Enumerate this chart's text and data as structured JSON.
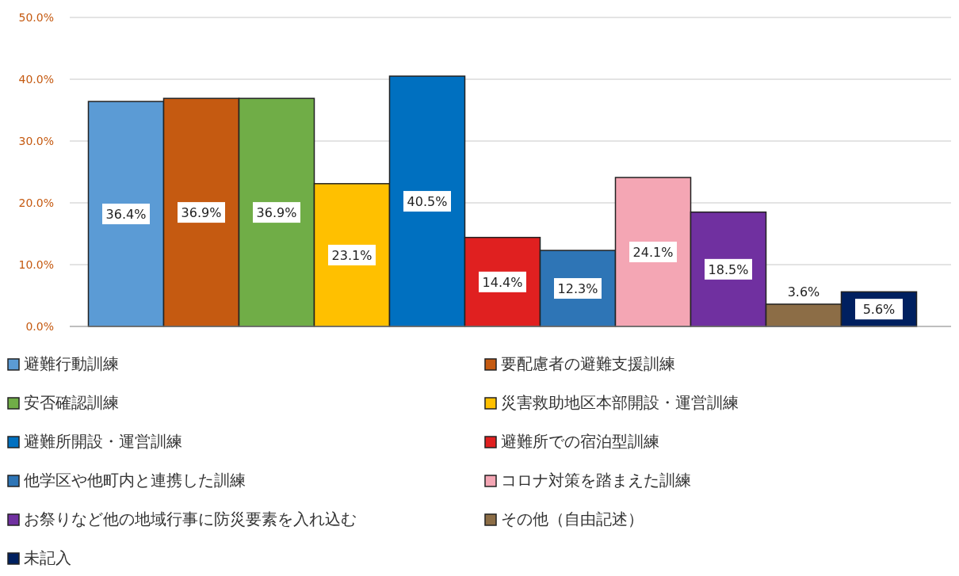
{
  "chart_data": {
    "type": "bar",
    "categories": [
      null
    ],
    "ylim": [
      0,
      50
    ],
    "yticks": [
      {
        "value": 0,
        "label": "0.0%"
      },
      {
        "value": 10,
        "label": "10.0%"
      },
      {
        "value": 20,
        "label": "20.0%"
      },
      {
        "value": 30,
        "label": "30.0%"
      },
      {
        "value": 40,
        "label": "40.0%"
      },
      {
        "value": 50,
        "label": "50.0%"
      }
    ],
    "grid": "y",
    "legend": "bottom",
    "series": [
      {
        "name": "避難行動訓練",
        "color": "#5b9bd5",
        "values": [
          36.4
        ],
        "value_labels": [
          "36.4%"
        ]
      },
      {
        "name": "要配慮者の避難支援訓練",
        "color": "#c55a11",
        "values": [
          36.9
        ],
        "value_labels": [
          "36.9%"
        ]
      },
      {
        "name": "安否確認訓練",
        "color": "#70ad47",
        "values": [
          36.9
        ],
        "value_labels": [
          "36.9%"
        ]
      },
      {
        "name": "災害救助地区本部開設・運営訓練",
        "color": "#ffc000",
        "values": [
          23.1
        ],
        "value_labels": [
          "23.1%"
        ]
      },
      {
        "name": "避難所開設・運営訓練",
        "color": "#0070c0",
        "values": [
          40.5
        ],
        "value_labels": [
          "40.5%"
        ]
      },
      {
        "name": "避難所での宿泊型訓練",
        "color": "#e02020",
        "values": [
          14.4
        ],
        "value_labels": [
          "14.4%"
        ]
      },
      {
        "name": "他学区や他町内と連携した訓練",
        "color": "#2e75b6",
        "values": [
          12.3
        ],
        "value_labels": [
          "12.3%"
        ]
      },
      {
        "name": "コロナ対策を踏まえた訓練",
        "color": "#f4a6b4",
        "values": [
          24.1
        ],
        "value_labels": [
          "24.1%"
        ]
      },
      {
        "name": "お祭りなど他の地域行事に防災要素を入れ込む",
        "color": "#7030a0",
        "values": [
          18.5
        ],
        "value_labels": [
          "18.5%"
        ]
      },
      {
        "name": "その他（自由記述）",
        "color": "#8c6d46",
        "values": [
          3.6
        ],
        "value_labels": [
          "3.6%"
        ]
      },
      {
        "name": "未記入",
        "color": "#002060",
        "values": [
          5.6
        ],
        "value_labels": [
          "5.6%"
        ]
      }
    ]
  }
}
